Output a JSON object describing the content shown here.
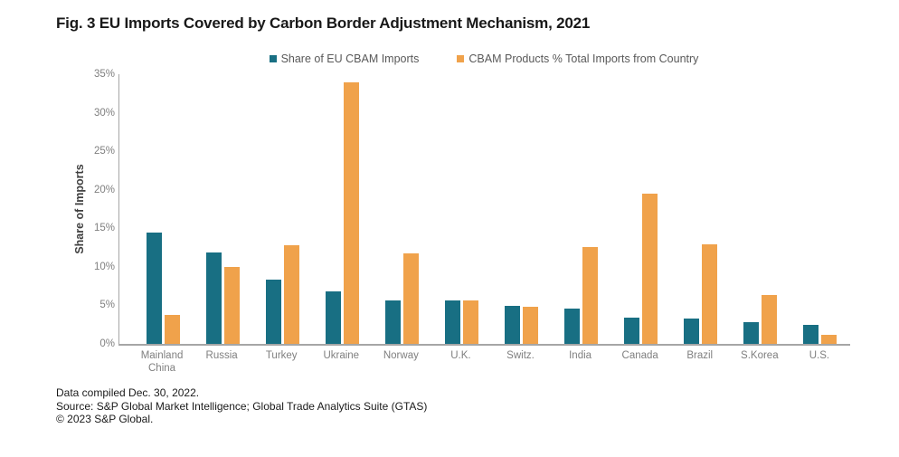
{
  "title": "Fig. 3 EU Imports Covered by Carbon Border Adjustment Mechanism, 2021",
  "chart_data": {
    "type": "bar",
    "title": "Fig. 3 EU Imports Covered by Carbon Border Adjustment Mechanism, 2021",
    "categories": [
      "Mainland China",
      "Russia",
      "Turkey",
      "Ukraine",
      "Norway",
      "U.K.",
      "Switz.",
      "India",
      "Canada",
      "Brazil",
      "S.Korea",
      "U.S."
    ],
    "series": [
      {
        "name": "Share of EU CBAM Imports",
        "color": "#186F83",
        "values": [
          14.5,
          11.9,
          8.3,
          6.8,
          5.6,
          5.6,
          4.9,
          4.6,
          3.4,
          3.3,
          2.8,
          2.5
        ]
      },
      {
        "name": "CBAM Products % Total Imports from Country",
        "color": "#F0A24B",
        "values": [
          3.8,
          10.0,
          12.8,
          34.0,
          11.8,
          5.6,
          4.8,
          12.6,
          19.5,
          12.9,
          6.3,
          1.2
        ]
      }
    ],
    "xlabel": "",
    "ylabel": "Share of Imports",
    "ylim": [
      0,
      35
    ],
    "yticks": [
      0,
      5,
      10,
      15,
      20,
      25,
      30,
      35
    ],
    "ytick_suffix": "%",
    "grid": false,
    "legend_position": "top"
  },
  "colors": {
    "series1": "#186F83",
    "series2": "#F0A24B",
    "axis_line": "#A6A6A6",
    "tick_text": "#7F7F7F",
    "legend_text": "#595959"
  },
  "footer": {
    "compiled": "Data compiled Dec. 30, 2022.",
    "source": "Source: S&P Global Market Intelligence;  Global  Trade Analytics Suite (GTAS)",
    "copyright": "© 2023 S&P Global."
  }
}
